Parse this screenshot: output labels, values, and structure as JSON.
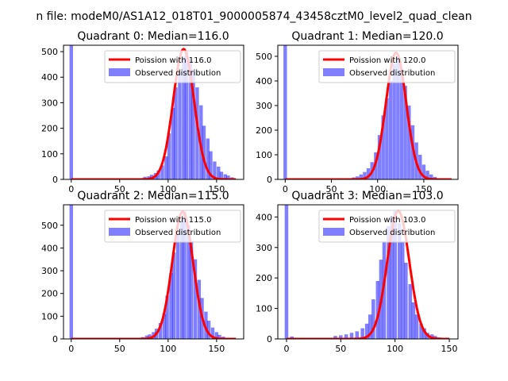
{
  "figure": {
    "suptitle": "n file: modeM0/AS1A12_018T01_9000005874_43458cztM0_level2_quad_clean"
  },
  "chart_data": [
    {
      "type": "histogram",
      "title": "Quadrant 0: Median=116.0",
      "xlim": [
        -8,
        178
      ],
      "ylim": [
        0,
        525
      ],
      "xticks": [
        0,
        50,
        100,
        150
      ],
      "yticks": [
        0,
        100,
        200,
        300,
        400,
        500
      ],
      "bin_width": 3.6,
      "spike": {
        "x": 0,
        "value": 525
      },
      "bins_x": [
        76,
        80,
        83,
        87,
        90,
        94,
        98,
        101,
        105,
        108,
        112,
        116,
        119,
        123,
        126,
        130,
        134,
        137,
        141,
        144,
        148,
        152,
        155,
        159,
        162,
        166
      ],
      "bins_counts": [
        10,
        12,
        18,
        25,
        35,
        55,
        90,
        180,
        280,
        360,
        420,
        480,
        500,
        470,
        430,
        360,
        290,
        210,
        160,
        110,
        70,
        50,
        30,
        20,
        15,
        8
      ],
      "poisson": {
        "mean": 116.0,
        "peak": 510,
        "x_range": [
          0,
          170
        ]
      },
      "legend": {
        "location": "upper right",
        "line_label": "Poission with 116.0",
        "bar_label": "Observed distribution"
      }
    },
    {
      "type": "histogram",
      "title": "Quadrant 1: Median=120.0",
      "xlim": [
        -8,
        187
      ],
      "ylim": [
        0,
        545
      ],
      "xticks": [
        0,
        50,
        100,
        150
      ],
      "yticks": [
        0,
        100,
        200,
        300,
        400,
        500
      ],
      "bin_width": 3.8,
      "spike": {
        "x": 0,
        "value": 545
      },
      "bins_x": [
        70,
        74,
        78,
        82,
        86,
        90,
        94,
        98,
        102,
        106,
        110,
        114,
        118,
        122,
        126,
        130,
        134,
        138,
        142,
        146,
        150,
        154,
        158,
        162
      ],
      "bins_counts": [
        5,
        8,
        12,
        20,
        30,
        45,
        70,
        110,
        180,
        260,
        330,
        400,
        470,
        500,
        450,
        380,
        300,
        220,
        150,
        100,
        60,
        35,
        20,
        10
      ],
      "poisson": {
        "mean": 120.0,
        "peak": 515,
        "x_range": [
          0,
          180
        ]
      },
      "legend": {
        "location": "upper right",
        "line_label": "Poission with 120.0",
        "bar_label": "Observed distribution"
      }
    },
    {
      "type": "histogram",
      "title": "Quadrant 2: Median=115.0",
      "xlim": [
        -8,
        178
      ],
      "ylim": [
        0,
        590
      ],
      "xticks": [
        0,
        50,
        100,
        150
      ],
      "yticks": [
        0,
        100,
        200,
        300,
        400,
        500
      ],
      "bin_width": 3.6,
      "spike": {
        "x": 0,
        "value": 590
      },
      "bins_x": [
        74,
        78,
        81,
        85,
        88,
        92,
        96,
        99,
        103,
        106,
        110,
        114,
        117,
        121,
        124,
        128,
        132,
        135,
        139,
        142,
        146,
        150,
        153,
        157,
        160
      ],
      "bins_counts": [
        8,
        15,
        20,
        30,
        45,
        70,
        110,
        190,
        290,
        380,
        460,
        520,
        560,
        500,
        430,
        350,
        260,
        180,
        120,
        80,
        50,
        30,
        18,
        10,
        5
      ],
      "poisson": {
        "mean": 115.0,
        "peak": 560,
        "x_range": [
          0,
          170
        ]
      },
      "legend": {
        "location": "upper right",
        "line_label": "Poission with 115.0",
        "bar_label": "Observed distribution"
      }
    },
    {
      "type": "histogram",
      "title": "Quadrant 3: Median=103.0",
      "xlim": [
        -8,
        158
      ],
      "ylim": [
        0,
        440
      ],
      "xticks": [
        0,
        50,
        100,
        150
      ],
      "yticks": [
        0,
        100,
        200,
        300,
        400
      ],
      "bin_width": 3.3,
      "spike": {
        "x": 0,
        "value": 440
      },
      "bins_x": [
        5,
        45,
        50,
        55,
        60,
        65,
        70,
        74,
        77,
        80,
        84,
        87,
        90,
        94,
        97,
        100,
        104,
        107,
        110,
        114,
        117,
        120,
        124,
        127,
        130,
        134,
        137,
        140,
        144
      ],
      "bins_counts": [
        8,
        10,
        12,
        15,
        20,
        25,
        35,
        50,
        80,
        130,
        190,
        260,
        320,
        370,
        400,
        420,
        380,
        320,
        250,
        180,
        120,
        80,
        50,
        35,
        20,
        15,
        10,
        5,
        3
      ],
      "poisson": {
        "mean": 103.0,
        "peak": 420,
        "x_range": [
          0,
          150
        ]
      },
      "legend": {
        "location": "upper right",
        "line_label": "Poission with 103.0",
        "bar_label": "Observed distribution"
      }
    }
  ]
}
